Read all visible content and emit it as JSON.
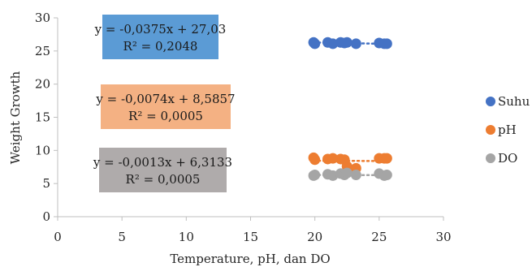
{
  "chart_data": {
    "type": "scatter",
    "xlabel": "Temperature, pH, dan DO",
    "ylabel": "Weight Growth",
    "xlim": [
      0,
      30
    ],
    "ylim": [
      0,
      30
    ],
    "xticks": [
      0,
      5,
      10,
      15,
      20,
      25,
      30
    ],
    "yticks": [
      0,
      5,
      10,
      15,
      20,
      25,
      30
    ],
    "grid": false,
    "legend_position": "right",
    "series": [
      {
        "name": "Suhu",
        "color": "#4472C4",
        "points": [
          [
            19.9,
            26.3
          ],
          [
            20.0,
            26.1
          ],
          [
            21.0,
            26.3
          ],
          [
            21.4,
            26.1
          ],
          [
            22.0,
            26.3
          ],
          [
            22.3,
            26.2
          ],
          [
            22.5,
            26.3
          ],
          [
            23.2,
            26.1
          ],
          [
            25.0,
            26.2
          ],
          [
            25.4,
            26.1
          ],
          [
            25.6,
            26.1
          ]
        ],
        "equation": "y = -0,0375x + 27,03",
        "r2": "R² = 0,2048",
        "box_color": "#5B9BD5"
      },
      {
        "name": "pH",
        "color": "#ED7D31",
        "points": [
          [
            19.9,
            8.9
          ],
          [
            20.0,
            8.6
          ],
          [
            21.0,
            8.7
          ],
          [
            21.4,
            8.8
          ],
          [
            22.0,
            8.7
          ],
          [
            22.3,
            8.6
          ],
          [
            22.5,
            7.6
          ],
          [
            23.2,
            7.3
          ],
          [
            25.0,
            8.8
          ],
          [
            25.4,
            8.8
          ],
          [
            25.6,
            8.8
          ]
        ],
        "equation": "y = -0,0074x + 8,5857",
        "r2": "R² = 0,0005",
        "box_color": "#F4B183"
      },
      {
        "name": "DO",
        "color": "#A5A5A5",
        "points": [
          [
            19.9,
            6.2
          ],
          [
            20.0,
            6.3
          ],
          [
            21.0,
            6.4
          ],
          [
            21.4,
            6.2
          ],
          [
            22.0,
            6.5
          ],
          [
            22.3,
            6.3
          ],
          [
            22.5,
            6.6
          ],
          [
            23.2,
            6.3
          ],
          [
            25.0,
            6.5
          ],
          [
            25.4,
            6.2
          ],
          [
            25.6,
            6.3
          ]
        ],
        "equation": "y = -0,0013x + 6,3133",
        "r2": "R² = 0,0005",
        "box_color": "#AFABAB"
      }
    ],
    "trendlines": [
      {
        "series": "Suhu",
        "slope": -0.0375,
        "intercept": 27.03,
        "x_range": [
          19.9,
          25.6
        ]
      },
      {
        "series": "pH",
        "slope": -0.0074,
        "intercept": 8.5857,
        "x_range": [
          19.9,
          25.6
        ]
      },
      {
        "series": "DO",
        "slope": -0.0013,
        "intercept": 6.3133,
        "x_range": [
          19.9,
          25.6
        ]
      }
    ]
  }
}
